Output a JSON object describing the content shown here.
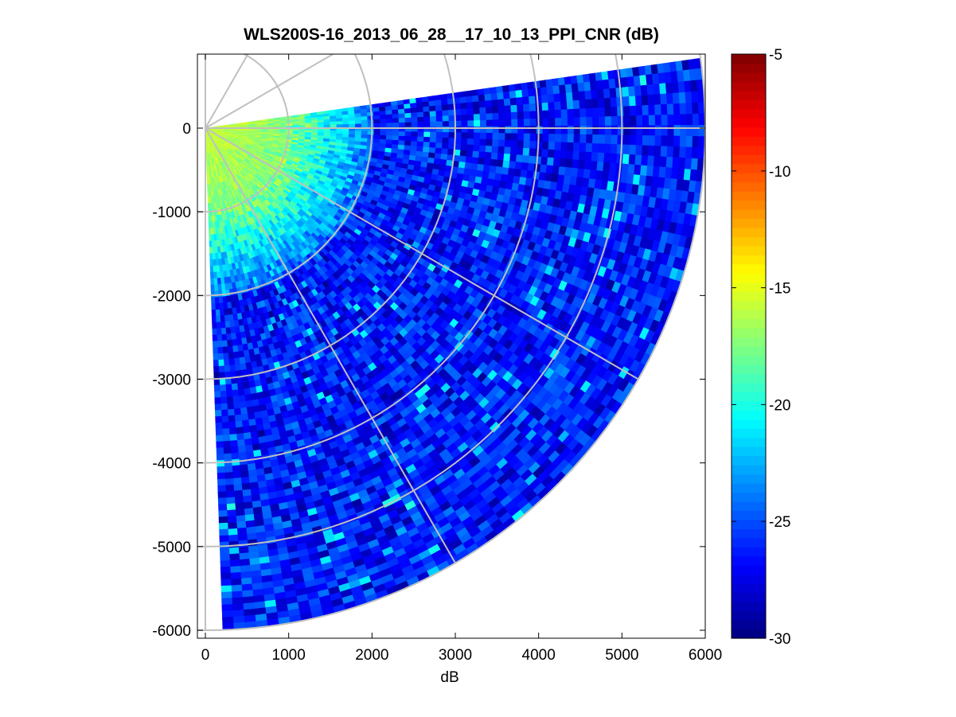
{
  "chart_data": {
    "type": "heatmap",
    "subtype": "polar-ppi-sector",
    "title": "WLS200S-16_2013_06_28__17_10_13_PPI_CNR (dB)",
    "xlabel": "dB",
    "ylabel": "",
    "xlim": [
      -100,
      6000
    ],
    "ylim": [
      -6100,
      900
    ],
    "xticks": [
      0,
      1000,
      2000,
      3000,
      4000,
      5000,
      6000
    ],
    "yticks": [
      0,
      -1000,
      -2000,
      -3000,
      -4000,
      -5000,
      -6000
    ],
    "xtick_labels": [
      "0",
      "1000",
      "2000",
      "3000",
      "4000",
      "5000",
      "6000"
    ],
    "ytick_labels": [
      "0",
      "-1000",
      "-2000",
      "-3000",
      "-4000",
      "-5000",
      "-6000"
    ],
    "colorbar": {
      "colormap": "jet",
      "clim": [
        -30,
        -5
      ],
      "ticks": [
        -5,
        -10,
        -15,
        -20,
        -25,
        -30
      ],
      "tick_labels": [
        "-5",
        "-10",
        "-15",
        "-20",
        "-25",
        "-30"
      ]
    },
    "sector": {
      "angle_min_deg": -88,
      "angle_max_deg": 8,
      "range_min": 0,
      "range_max": 6000
    },
    "polar_grid": {
      "range_rings": [
        1000,
        2000,
        3000,
        4000,
        5000,
        6000
      ],
      "spokes_deg": [
        0,
        30,
        60,
        90,
        -30,
        -60,
        -90
      ]
    },
    "cnr_profile_summary": [
      {
        "range_min": 0,
        "range_max": 1000,
        "cnr_db": -15.5
      },
      {
        "range_min": 1000,
        "range_max": 2000,
        "cnr_db": -21
      },
      {
        "range_min": 2000,
        "range_max": 6000,
        "cnr_db": -26.5
      }
    ],
    "grid": true
  },
  "colors": {
    "grid": "#c0c0c0",
    "axis": "#000000",
    "background": "#ffffff"
  }
}
